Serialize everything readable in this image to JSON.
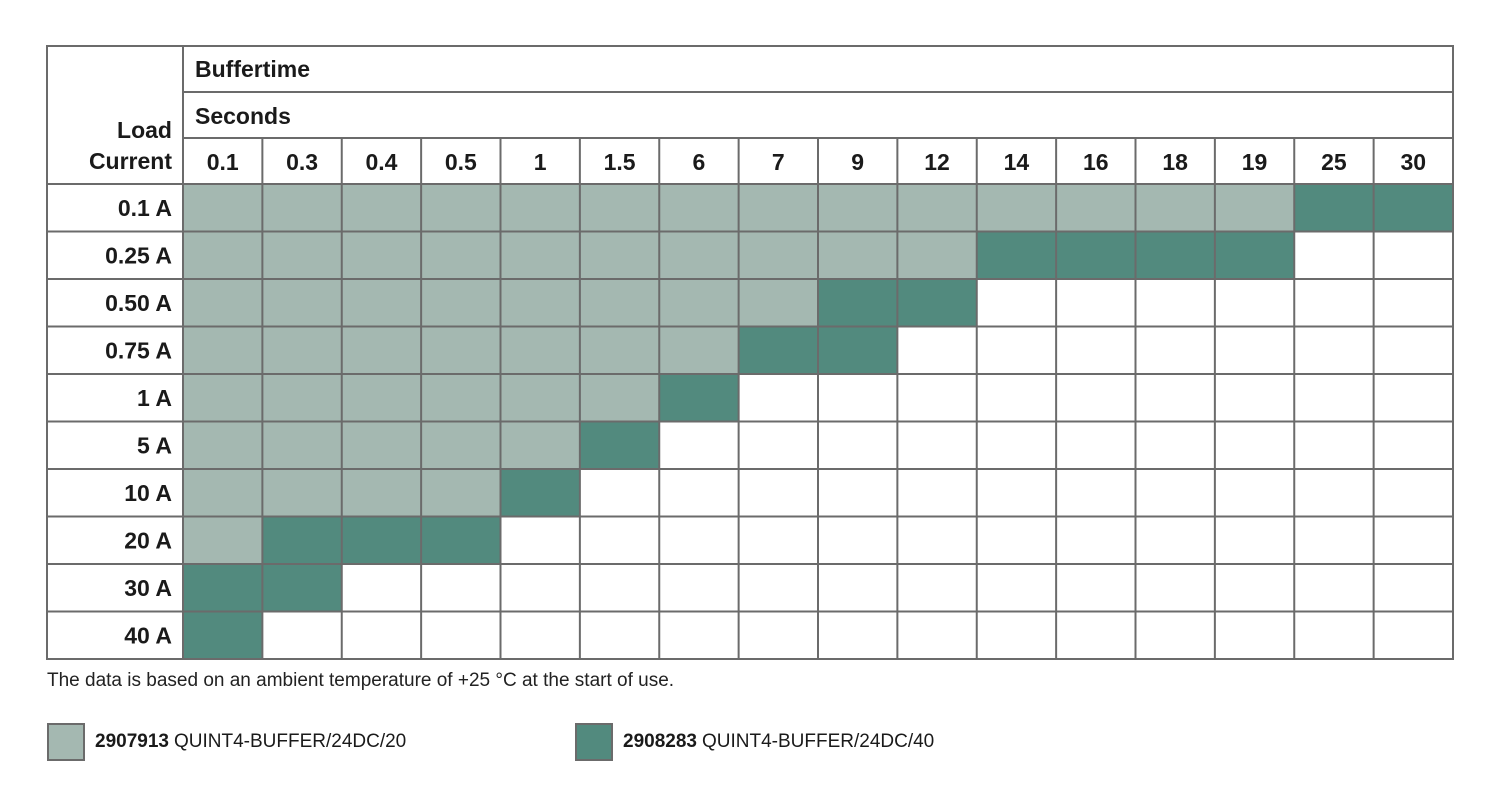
{
  "chart_data": {
    "type": "table",
    "column_group_title": "Buffertime",
    "column_unit": "Seconds",
    "row_header": [
      "Load",
      "Current"
    ],
    "columns": [
      "0.1",
      "0.3",
      "0.4",
      "0.5",
      "1",
      "1.5",
      "6",
      "7",
      "9",
      "12",
      "14",
      "16",
      "18",
      "19",
      "25",
      "30"
    ],
    "rows": [
      "0.1 A",
      "0.25 A",
      "0.50 A",
      "0.75 A",
      "1 A",
      "5 A",
      "10 A",
      "20 A",
      "30 A",
      "40 A"
    ],
    "max_buffer_time_2907913": [
      19,
      12,
      7,
      6,
      1.5,
      1,
      0.5,
      0.1,
      null,
      null
    ],
    "max_buffer_time_2908283": [
      30,
      19,
      12,
      9,
      6,
      1.5,
      1,
      0.5,
      0.3,
      0.1
    ],
    "colors": {
      "2907913": "#a4b8b1",
      "2908283": "#528a7e",
      "empty": "#ffffff",
      "grid": "#6b6b6b"
    }
  },
  "note": "The data is based on an ambient temperature of +25 °C at the start of use.",
  "legend": [
    {
      "code": "2907913",
      "name": "QUINT4-BUFFER/24DC/20",
      "color": "#a4b8b1"
    },
    {
      "code": "2908283",
      "name": "QUINT4-BUFFER/24DC/40",
      "color": "#528a7e"
    }
  ]
}
